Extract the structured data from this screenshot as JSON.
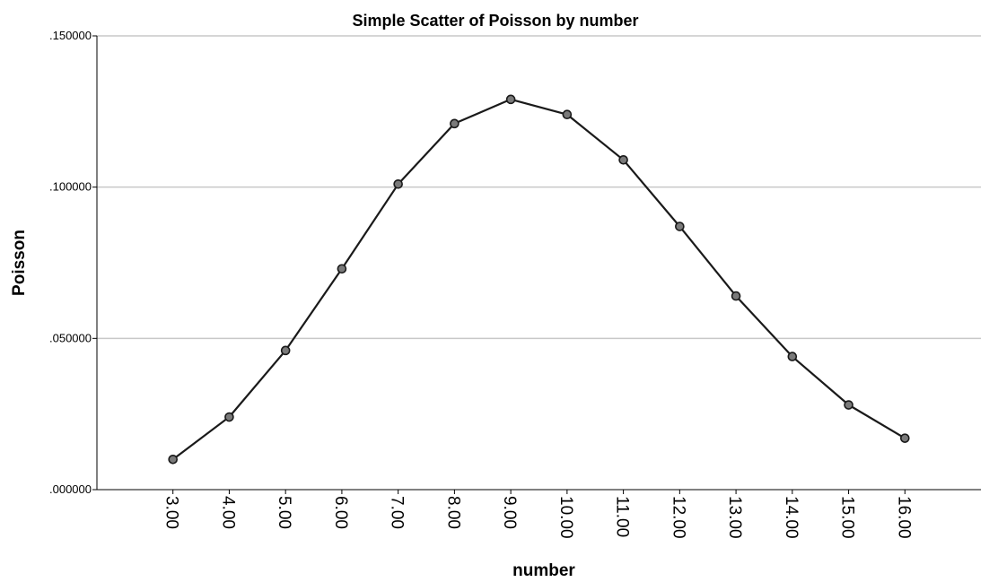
{
  "chart_data": {
    "type": "line",
    "title": "Simple Scatter of Poisson by number",
    "xlabel": "number",
    "ylabel": "Poisson",
    "x": [
      3,
      4,
      5,
      6,
      7,
      8,
      9,
      10,
      11,
      12,
      13,
      14,
      15,
      16
    ],
    "x_tick_labels": [
      "3.00",
      "4.00",
      "5.00",
      "6.00",
      "7.00",
      "8.00",
      "9.00",
      "10.00",
      "11.00",
      "12.00",
      "13.00",
      "14.00",
      "15.00",
      "16.00"
    ],
    "series": [
      {
        "values": [
          0.01,
          0.024,
          0.046,
          0.073,
          0.101,
          0.121,
          0.129,
          0.124,
          0.109,
          0.087,
          0.064,
          0.044,
          0.028,
          0.017
        ],
        "marker": "circle"
      }
    ],
    "y_ticks": [
      0.0,
      0.05,
      0.1,
      0.15
    ],
    "y_tick_labels": [
      ".000000",
      ".050000",
      ".100000",
      ".150000"
    ],
    "ylim": [
      0,
      0.15
    ],
    "xlim": [
      1.65,
      17.35
    ],
    "grid": "horizontal",
    "colors": {
      "line": "#1a1a1a",
      "marker_fill": "#7a7a7a",
      "marker_stroke": "#1a1a1a",
      "grid": "#c8c8c8",
      "axis": "#000000"
    }
  }
}
